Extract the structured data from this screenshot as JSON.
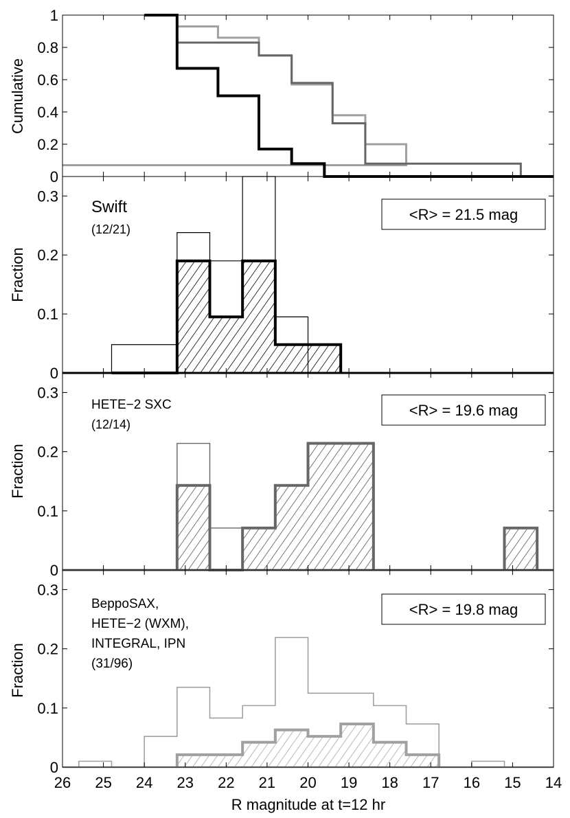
{
  "figure": {
    "xlabel": "R magnitude at t=12 hr",
    "xlim": [
      26,
      14
    ],
    "xticks": [
      26,
      25,
      24,
      23,
      22,
      21,
      20,
      19,
      18,
      17,
      16,
      15,
      14
    ],
    "colors": {
      "swift": "#000000",
      "hete": "#666666",
      "other": "#a0a0a0"
    }
  },
  "chart_data": [
    {
      "type": "line",
      "ylabel": "Cumulative",
      "ylim": [
        0,
        1
      ],
      "yticks": [
        "0",
        "0.2",
        "0.4",
        "0.6",
        "0.8",
        "1"
      ],
      "yticks_values": [
        0,
        0.2,
        0.4,
        0.6,
        0.8,
        1
      ],
      "series": [
        {
          "key": "other",
          "x": [
            23.2,
            23.2,
            22.2,
            22.2,
            21.2,
            21.2,
            20.4,
            20.4,
            19.4,
            19.4,
            18.6,
            18.6,
            17.6,
            17.6,
            26
          ],
          "y": [
            1,
            0.93,
            0.93,
            0.86,
            0.86,
            0.75,
            0.75,
            0.57,
            0.57,
            0.38,
            0.38,
            0.2,
            0.2,
            0.07,
            0.07
          ]
        },
        {
          "key": "hete",
          "x": [
            23.2,
            23.2,
            21.2,
            21.2,
            20.4,
            20.4,
            19.4,
            19.4,
            18.6,
            18.6,
            14.8,
            14.8
          ],
          "y": [
            1,
            0.83,
            0.83,
            0.75,
            0.75,
            0.58,
            0.58,
            0.33,
            0.33,
            0.08,
            0.08,
            0
          ]
        },
        {
          "key": "swift",
          "x": [
            24,
            23.2,
            23.2,
            22.2,
            22.2,
            21.2,
            21.2,
            20.4,
            20.4,
            19.6,
            19.6,
            14
          ],
          "y": [
            1,
            1,
            0.67,
            0.67,
            0.5,
            0.5,
            0.17,
            0.17,
            0.08,
            0.08,
            0,
            0
          ]
        }
      ]
    },
    {
      "type": "bar",
      "label": "Swift",
      "count": "(12/21)",
      "mean": "<R> = 21.5 mag",
      "ylabel": "Fraction",
      "ylim": [
        0,
        0.333
      ],
      "yticks": [
        "0",
        "0.1",
        "0.2",
        "0.3"
      ],
      "yticks_values": [
        0,
        0.1,
        0.2,
        0.3
      ],
      "edges": [
        24.8,
        23.2,
        22.4,
        21.6,
        20.8,
        20.0,
        19.2
      ],
      "all": [
        0.048,
        0.238,
        0.19,
        0.333,
        0.095,
        0
      ],
      "detected": [
        0,
        0.19,
        0.095,
        0.19,
        0.048,
        0.048
      ]
    },
    {
      "type": "bar",
      "label": "HETE−2 SXC",
      "count": "(12/14)",
      "mean": "<R> = 19.6 mag",
      "ylabel": "Fraction",
      "ylim": [
        0,
        0.333
      ],
      "yticks": [
        "0",
        "0.1",
        "0.2",
        "0.3"
      ],
      "yticks_values": [
        0,
        0.1,
        0.2,
        0.3
      ],
      "edges": [
        23.2,
        22.4,
        21.6,
        20.8,
        20.0,
        18.4
      ],
      "all": [
        0.214,
        0.071,
        0.071,
        0.143,
        0.214
      ],
      "detected": [
        0.143,
        0,
        0.071,
        0.143,
        0.214
      ],
      "extra": {
        "edges": [
          15.2,
          14.4
        ],
        "all": [
          0.071
        ],
        "detected": [
          0.071
        ]
      }
    },
    {
      "type": "bar",
      "label_lines": [
        "BeppoSAX,",
        "HETE−2 (WXM),",
        "INTEGRAL, IPN",
        "(31/96)"
      ],
      "mean": "<R> = 19.8 mag",
      "ylabel": "Fraction",
      "ylim": [
        0,
        0.333
      ],
      "yticks": [
        "0",
        "0.1",
        "0.2",
        "0.3"
      ],
      "yticks_values": [
        0,
        0.1,
        0.2,
        0.3
      ],
      "outline_x": [
        26,
        25.6,
        25.6,
        24.8,
        24.8,
        24,
        24,
        23.2,
        23.2,
        22.4,
        22.4,
        21.6,
        21.6,
        20.8,
        20.8,
        20.0,
        20.0,
        19.2,
        19.2,
        18.4,
        18.4,
        17.6,
        17.6,
        16.8,
        16.8,
        16.0,
        16.0,
        15.2,
        15.2,
        14
      ],
      "outline_y": [
        0,
        0,
        0.01,
        0.01,
        0,
        0,
        0.052,
        0.052,
        0.135,
        0.135,
        0.083,
        0.083,
        0.104,
        0.104,
        0.219,
        0.219,
        0.125,
        0.125,
        0.125,
        0.125,
        0.104,
        0.104,
        0.073,
        0.073,
        0,
        0,
        0.01,
        0.01,
        0,
        0
      ],
      "det_edges": [
        23.2,
        22.4,
        21.6,
        20.8,
        20.0,
        19.2,
        18.4,
        17.6,
        16.8
      ],
      "detected": [
        0.021,
        0.021,
        0.042,
        0.063,
        0.052,
        0.073,
        0.042,
        0.021
      ]
    }
  ]
}
